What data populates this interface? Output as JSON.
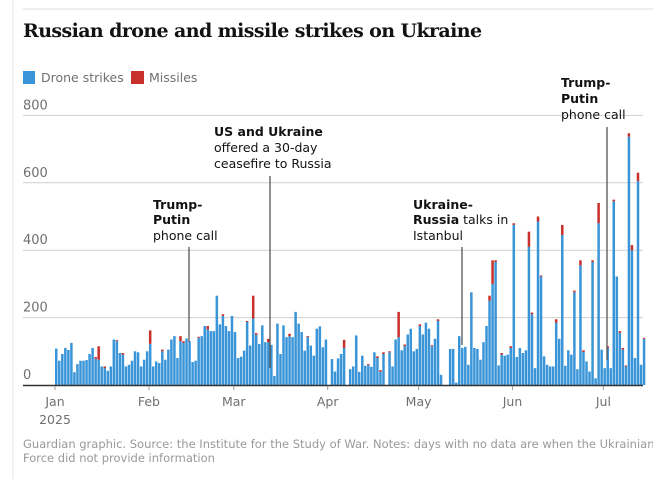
{
  "chart_data": {
    "type": "bar",
    "stacked": true,
    "title": "Russian drone and missile strikes on Ukraine",
    "x_start": "2025-01-01",
    "x_end": "2025-07-14",
    "ylim": [
      0,
      800
    ],
    "yticks": [
      "0",
      "200",
      "400",
      "600",
      "800"
    ],
    "xticks": [
      "Jan",
      "Feb",
      "Mar",
      "Apr",
      "May",
      "Jun",
      "Jul"
    ],
    "xtick_sub": "2025",
    "grid": true,
    "legend_position": "top-left",
    "colors": {
      "drones": "#3a95d8",
      "missiles": "#c8302c",
      "grid": "#cfcfcf",
      "axis": "#333333"
    },
    "series": [
      {
        "name": "Drone strikes",
        "months": [
          [
            108,
            72,
            92,
            110,
            104,
            125,
            38,
            62,
            72,
            72,
            74,
            92,
            110,
            78,
            75,
            55,
            50,
            42,
            55,
            135,
            130,
            95,
            90,
            55,
            60,
            72,
            100,
            97,
            55,
            75,
            100
          ],
          [
            122,
            55,
            70,
            65,
            100,
            75,
            105,
            135,
            145,
            80,
            130,
            125,
            138,
            130,
            68,
            72,
            140,
            145,
            175,
            165,
            160,
            160,
            265,
            180,
            205,
            175,
            160,
            205
          ],
          [
            157,
            80,
            84,
            102,
            187,
            117,
            197,
            149,
            122,
            177,
            127,
            127,
            119,
            27,
            182,
            92,
            177,
            142,
            145,
            142,
            217,
            182,
            157,
            102,
            142,
            117,
            87,
            167,
            174,
            112,
            135
          ],
          [
            null,
            77,
            40,
            79,
            92,
            110,
            null,
            47,
            55,
            147,
            39,
            87,
            57,
            59,
            54,
            97,
            80,
            39,
            92,
            null,
            97,
            55,
            135,
            142,
            103,
            115,
            150,
            167,
            100,
            107
          ],
          [
            175,
            150,
            185,
            167,
            115,
            137,
            190,
            30,
            null,
            null,
            107,
            107,
            7,
            145,
            110,
            113,
            60,
            275,
            110,
            107,
            75,
            127,
            175,
            250,
            300,
            365,
            58,
            90,
            87,
            90,
            110
          ],
          [
            475,
            83,
            110,
            95,
            103,
            410,
            210,
            50,
            485,
            322,
            85,
            60,
            55,
            55,
            185,
            137,
            445,
            57,
            103,
            90,
            275,
            47,
            355,
            98,
            70,
            40,
            365,
            20,
            480,
            105
          ],
          [
            50,
            110,
            50,
            545,
            322,
            155,
            105,
            55,
            737,
            400,
            80,
            605,
            60,
            137
          ]
        ]
      },
      {
        "name": "Missiles",
        "months": [
          [
            0,
            0,
            0,
            0,
            0,
            0,
            0,
            0,
            0,
            0,
            0,
            0,
            0,
            5,
            40,
            0,
            5,
            0,
            0,
            0,
            3,
            0,
            5,
            0,
            0,
            0,
            0,
            0,
            0,
            0,
            0
          ],
          [
            40,
            0,
            0,
            0,
            5,
            0,
            0,
            0,
            0,
            0,
            15,
            5,
            0,
            0,
            0,
            0,
            3,
            0,
            0,
            10,
            0,
            0,
            0,
            0,
            5,
            0,
            0,
            0
          ],
          [
            0,
            0,
            0,
            0,
            3,
            0,
            68,
            5,
            0,
            0,
            0,
            10,
            0,
            0,
            0,
            0,
            0,
            0,
            7,
            0,
            0,
            0,
            0,
            0,
            3,
            0,
            0,
            0,
            0,
            0,
            0
          ],
          [
            null,
            0,
            0,
            0,
            0,
            24,
            null,
            0,
            0,
            0,
            0,
            0,
            0,
            3,
            0,
            0,
            5,
            5,
            5,
            null,
            3,
            0,
            0,
            75,
            0,
            5,
            0,
            0,
            0,
            0
          ],
          [
            5,
            0,
            0,
            0,
            3,
            0,
            5,
            0,
            null,
            null,
            0,
            0,
            0,
            0,
            0,
            0,
            0,
            0,
            0,
            0,
            0,
            0,
            0,
            15,
            70,
            5,
            0,
            5,
            0,
            0,
            5
          ],
          [
            5,
            0,
            0,
            0,
            0,
            45,
            5,
            0,
            15,
            3,
            0,
            0,
            0,
            0,
            10,
            0,
            30,
            0,
            0,
            0,
            5,
            0,
            15,
            5,
            0,
            0,
            5,
            0,
            60,
            0
          ],
          [
            0,
            5,
            0,
            5,
            0,
            5,
            5,
            3,
            10,
            15,
            0,
            25,
            0,
            3
          ]
        ]
      }
    ],
    "annotations": [
      {
        "bold": [
          "Trump-",
          "Putin"
        ],
        "text": [
          "phone call"
        ]
      },
      {
        "bold": [
          "US and Ukraine"
        ],
        "text": [
          "offered a 30-day",
          "ceasefire to Russia"
        ]
      },
      {
        "bold": [
          "Ukraine-",
          "Russia"
        ],
        "bold_suffix": " talks in",
        "text": [
          "Istanbul"
        ]
      },
      {
        "bold": [
          "Trump-",
          "Putin"
        ],
        "text": [
          "phone call"
        ]
      }
    ],
    "footer": [
      "Guardian graphic. Source: the Institute for the Study of War. Notes: days with no data are when the Ukrainian Air",
      "Force did not provide information"
    ]
  }
}
